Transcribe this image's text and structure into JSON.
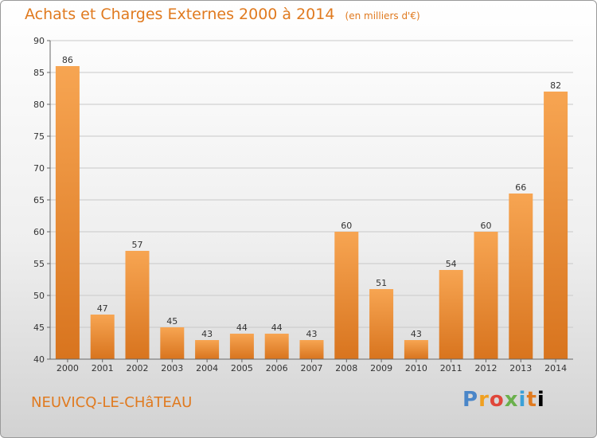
{
  "chart_data": {
    "type": "bar",
    "title": "Achats et Charges Externes 2000 à 2014",
    "unit": "(en milliers d'€)",
    "categories": [
      "2000",
      "2001",
      "2002",
      "2003",
      "2004",
      "2005",
      "2006",
      "2007",
      "2008",
      "2009",
      "2010",
      "2011",
      "2012",
      "2013",
      "2014"
    ],
    "values": [
      86,
      47,
      57,
      45,
      43,
      44,
      44,
      43,
      60,
      51,
      43,
      54,
      60,
      66,
      82
    ],
    "ylim": [
      40,
      90
    ],
    "yticks": [
      40,
      45,
      50,
      55,
      60,
      65,
      70,
      75,
      80,
      85,
      90
    ],
    "grid": true,
    "bar_color": "#f0a050"
  },
  "place_name": "NEUVICQ-LE-CHâTEAU",
  "logo": {
    "letters": [
      "P",
      "r",
      "o",
      "x",
      "i",
      "t",
      "i"
    ]
  }
}
